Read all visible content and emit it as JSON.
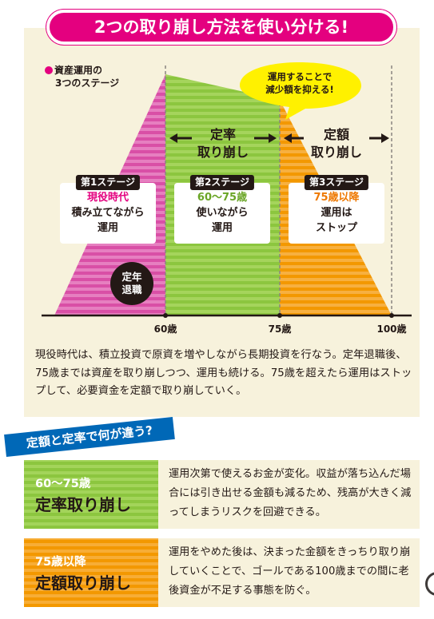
{
  "title": "2つの取り崩し方法を使い分ける!",
  "legend": {
    "line1": "資産運用の",
    "line2": "3つのステージ"
  },
  "bubble": {
    "line1": "運用することで",
    "line2": "減少額を抑える!"
  },
  "arrows": {
    "teiritsu": {
      "line1": "定率",
      "line2": "取り崩し"
    },
    "teigaku": {
      "line1": "定額",
      "line2": "取り崩し"
    }
  },
  "stages": [
    {
      "tag": "第1ステージ",
      "highlight": "現役時代",
      "line2": "積み立てながら",
      "line3": "運用",
      "highlight_color": "#e4007f"
    },
    {
      "tag": "第2ステージ",
      "highlight": "60〜75歳",
      "line2": "使いながら",
      "line3": "運用",
      "highlight_color": "#6aa526"
    },
    {
      "tag": "第3ステージ",
      "highlight": "75歳以降",
      "line2": "運用は",
      "line3": "ストップ",
      "highlight_color": "#ee7800"
    }
  ],
  "retirement": {
    "line1": "定年",
    "line2": "退職"
  },
  "ages": [
    "60歳",
    "75歳",
    "100歳"
  ],
  "description": "現役時代は、積立投資で原資を増やしながら長期投資を行なう。定年退職後、75歳までは資産を取り崩しつつ、運用も続ける。75歳を超えたら運用はストップして、必要資金を定額で取り崩していく。",
  "question": "定額と定率で何が違う?",
  "methods": [
    {
      "age": "60〜75歳",
      "name": "定率取り崩し",
      "text": "運用次第で使えるお金が変化。収益が落ち込んだ場合には引き出せる金額も減るため、残高が大きく減ってしまうリスクを回避できる。"
    },
    {
      "age": "75歳以降",
      "name": "定額取り崩し",
      "text": "運用をやめた後は、決まった金額をきっちり取り崩していくことで、ゴールである100歳までの間に老後資金が不足する事態を防ぐ。"
    }
  ],
  "colors": {
    "pink": "#e4007f",
    "green": "#8cc63f",
    "orange": "#f39800",
    "blue": "#0068b7",
    "yellow": "#fff100",
    "cream": "#f7f2dc"
  }
}
